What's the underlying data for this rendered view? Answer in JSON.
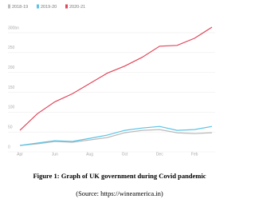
{
  "chart_data": {
    "type": "line",
    "categories": [
      "Apr",
      null,
      "Jun",
      null,
      "Aug",
      null,
      "Oct",
      null,
      "Dec",
      null,
      "Feb",
      null
    ],
    "series": [
      {
        "name": "2018-19",
        "color": "#bbbbbb",
        "values": [
          4,
          8,
          14,
          12,
          18,
          24,
          36,
          42,
          44,
          36,
          34,
          36
        ]
      },
      {
        "name": "2019-20",
        "color": "#5bc4e6",
        "values": [
          4,
          10,
          16,
          14,
          22,
          30,
          42,
          48,
          52,
          42,
          44,
          52
        ]
      },
      {
        "name": "2020-21",
        "color": "#e0475b",
        "values": [
          42,
          84,
          114,
          134,
          160,
          186,
          204,
          226,
          254,
          256,
          274,
          302
        ]
      }
    ],
    "ylim": [
      0,
      310
    ],
    "yticks": [
      0,
      50,
      100,
      150,
      200,
      250,
      {
        "value": 300,
        "label": "300bn"
      }
    ],
    "grid": true,
    "caption": "Figure 1: Graph of UK government during Covid pandemic",
    "source": "(Source: https://wineamerica.in)"
  }
}
